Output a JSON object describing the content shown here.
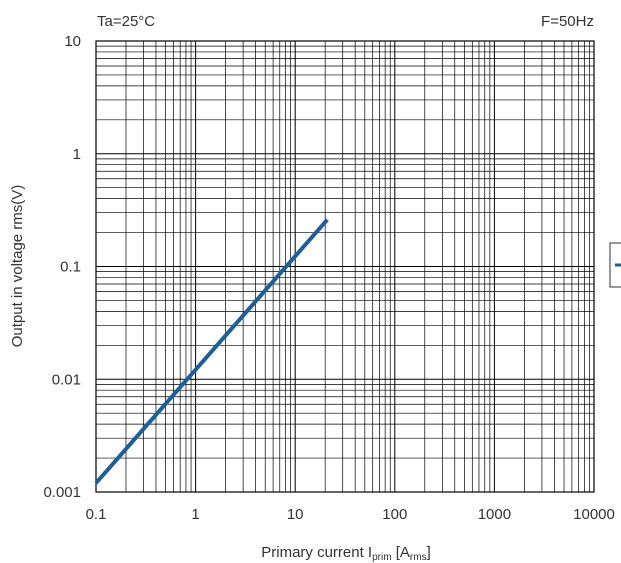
{
  "chart_data": {
    "type": "line",
    "x_scale": "log",
    "y_scale": "log",
    "xlim": [
      0.1,
      10000
    ],
    "ylim": [
      0.001,
      10
    ],
    "x_ticks": [
      "0.1",
      "1",
      "10",
      "100",
      "1000",
      "10000"
    ],
    "y_ticks": [
      "0.001",
      "0.01",
      "0.1",
      "1",
      "10"
    ],
    "grid": true,
    "condition_left": "Ta=25°C",
    "condition_right": "F=50Hz",
    "xlabel": {
      "main": "Primary current I",
      "sub": "prim",
      "bracket_open": " [A",
      "unit_sub": "rms",
      "bracket_close": "]"
    },
    "ylabel": "Output in voltage rms(V)",
    "series": [
      {
        "color": "#1f5f99",
        "x": [
          0.1,
          21
        ],
        "y": [
          0.0012,
          0.26
        ]
      }
    ],
    "legend_color": "#1f5f99"
  }
}
